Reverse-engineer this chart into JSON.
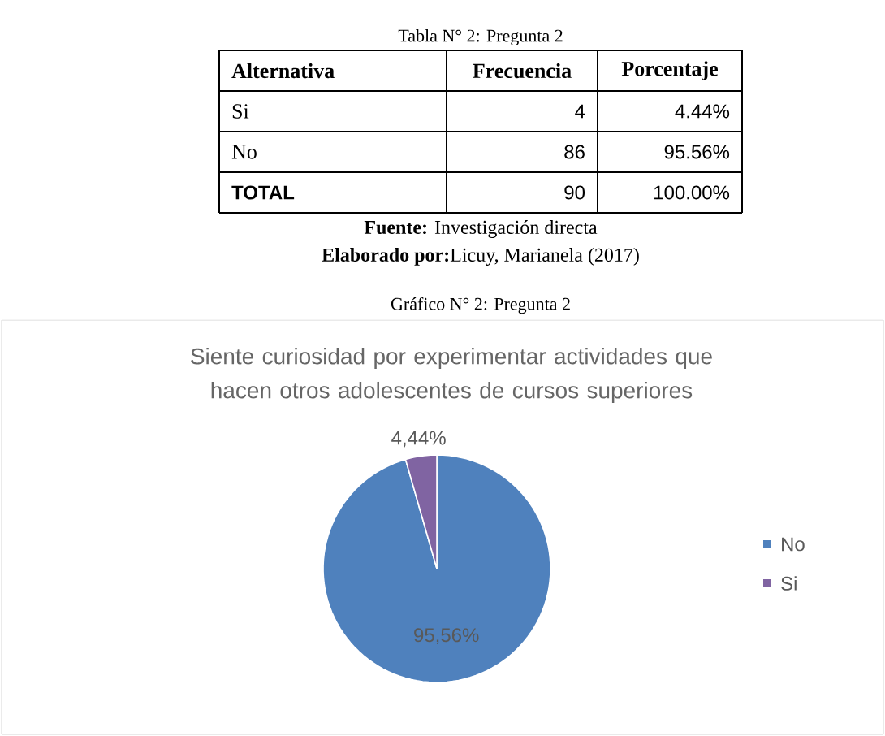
{
  "chart_data": {
    "type": "pie",
    "title": "Siente curiosidad por experimentar actividades que hacen otros adolescentes de cursos superiores",
    "categories": [
      "No",
      "Si"
    ],
    "values": [
      95.56,
      4.44
    ],
    "colors": [
      "#4f81bd",
      "#8064a2"
    ],
    "value_labels": [
      "95,56%",
      "4,44%"
    ],
    "legend": "right",
    "annotations": [
      "Tabla N° 2: Pregunta 2",
      "Alternativa",
      "Frecuencia",
      "Porcentaje",
      "Si",
      "4",
      "4.44%",
      "No",
      "86",
      "95.56%",
      "TOTAL",
      "90",
      "100.00%",
      "**Fuente:** Investigación directa",
      "**Elaborado por:**Licuy, Marianela (2017)",
      "Gráfico N°  2: Pregunta 2"
    ]
  }
}
